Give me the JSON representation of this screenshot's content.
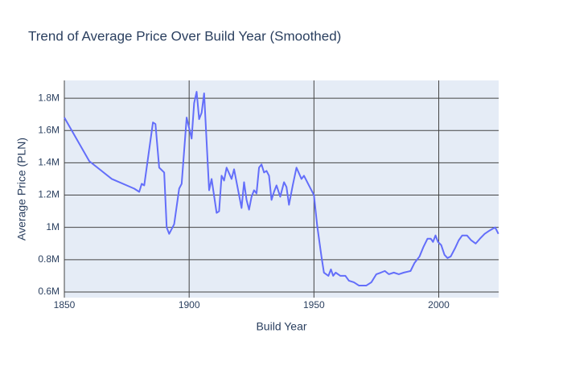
{
  "chart_data": {
    "type": "line",
    "title": "Trend of Average Price Over Build Year (Smoothed)",
    "x_label": "Build Year",
    "y_label": "Average Price (PLN)",
    "xlim": [
      1850,
      2024
    ],
    "xticks": [
      1850,
      1900,
      1950,
      2000
    ],
    "ylim": [
      565000,
      1910000
    ],
    "yticks": [
      {
        "value": 600000,
        "label": "0.6M"
      },
      {
        "value": 800000,
        "label": "0.8M"
      },
      {
        "value": 1000000,
        "label": "1M"
      },
      {
        "value": 1200000,
        "label": "1.2M"
      },
      {
        "value": 1400000,
        "label": "1.4M"
      },
      {
        "value": 1600000,
        "label": "1.6M"
      },
      {
        "value": 1800000,
        "label": "1.8M"
      }
    ],
    "grid": true,
    "series": [
      {
        "color": "#636efa",
        "x": [
          1850,
          1860,
          1869,
          1878,
          1880,
          1881,
          1882,
          1885.5,
          1886.5,
          1888,
          1890,
          1891,
          1892,
          1894,
          1896,
          1897,
          1899,
          1901,
          1902,
          1903,
          1904,
          1905,
          1906,
          1908,
          1909,
          1911,
          1912,
          1913,
          1914,
          1915,
          1917,
          1918,
          1921,
          1922,
          1923,
          1924,
          1925,
          1926,
          1927,
          1928,
          1929,
          1930,
          1931,
          1932,
          1933,
          1934,
          1935,
          1936.5,
          1938,
          1939,
          1940,
          1941.5,
          1943,
          1945,
          1946,
          1950,
          1951.3,
          1953,
          1954,
          1955.8,
          1956.8,
          1957.7,
          1958.7,
          1960.6,
          1962.6,
          1964,
          1966,
          1968,
          1971,
          1973,
          1975,
          1976.8,
          1978.4,
          1980,
          1982,
          1984,
          1986,
          1988.7,
          1990.3,
          1992.3,
          1993.9,
          1995.5,
          1996.8,
          1997.7,
          1998.7,
          1999.7,
          2001,
          2002.3,
          2003.5,
          2004.8,
          2006.5,
          2008,
          2009.4,
          2011.3,
          2013,
          2014.8,
          2016.5,
          2018.4,
          2020.3,
          2022.6,
          2023.9
        ],
        "values": [
          1680000,
          1410000,
          1300000,
          1240000,
          1220000,
          1270000,
          1260000,
          1650000,
          1640000,
          1370000,
          1340000,
          1000000,
          960000,
          1020000,
          1240000,
          1270000,
          1680000,
          1550000,
          1770000,
          1840000,
          1670000,
          1710000,
          1830000,
          1230000,
          1300000,
          1090000,
          1100000,
          1320000,
          1290000,
          1370000,
          1300000,
          1360000,
          1120000,
          1280000,
          1170000,
          1110000,
          1190000,
          1230000,
          1210000,
          1370000,
          1390000,
          1340000,
          1350000,
          1320000,
          1170000,
          1220000,
          1260000,
          1190000,
          1280000,
          1250000,
          1140000,
          1260000,
          1370000,
          1300000,
          1320000,
          1200000,
          1010000,
          820000,
          720000,
          700000,
          740000,
          700000,
          720000,
          700000,
          700000,
          670000,
          660000,
          640000,
          640000,
          660000,
          710000,
          720000,
          730000,
          710000,
          720000,
          710000,
          720000,
          730000,
          780000,
          820000,
          880000,
          930000,
          930000,
          910000,
          950000,
          910000,
          890000,
          830000,
          810000,
          820000,
          870000,
          920000,
          950000,
          950000,
          920000,
          900000,
          930000,
          960000,
          980000,
          1000000,
          960000
        ]
      }
    ]
  }
}
